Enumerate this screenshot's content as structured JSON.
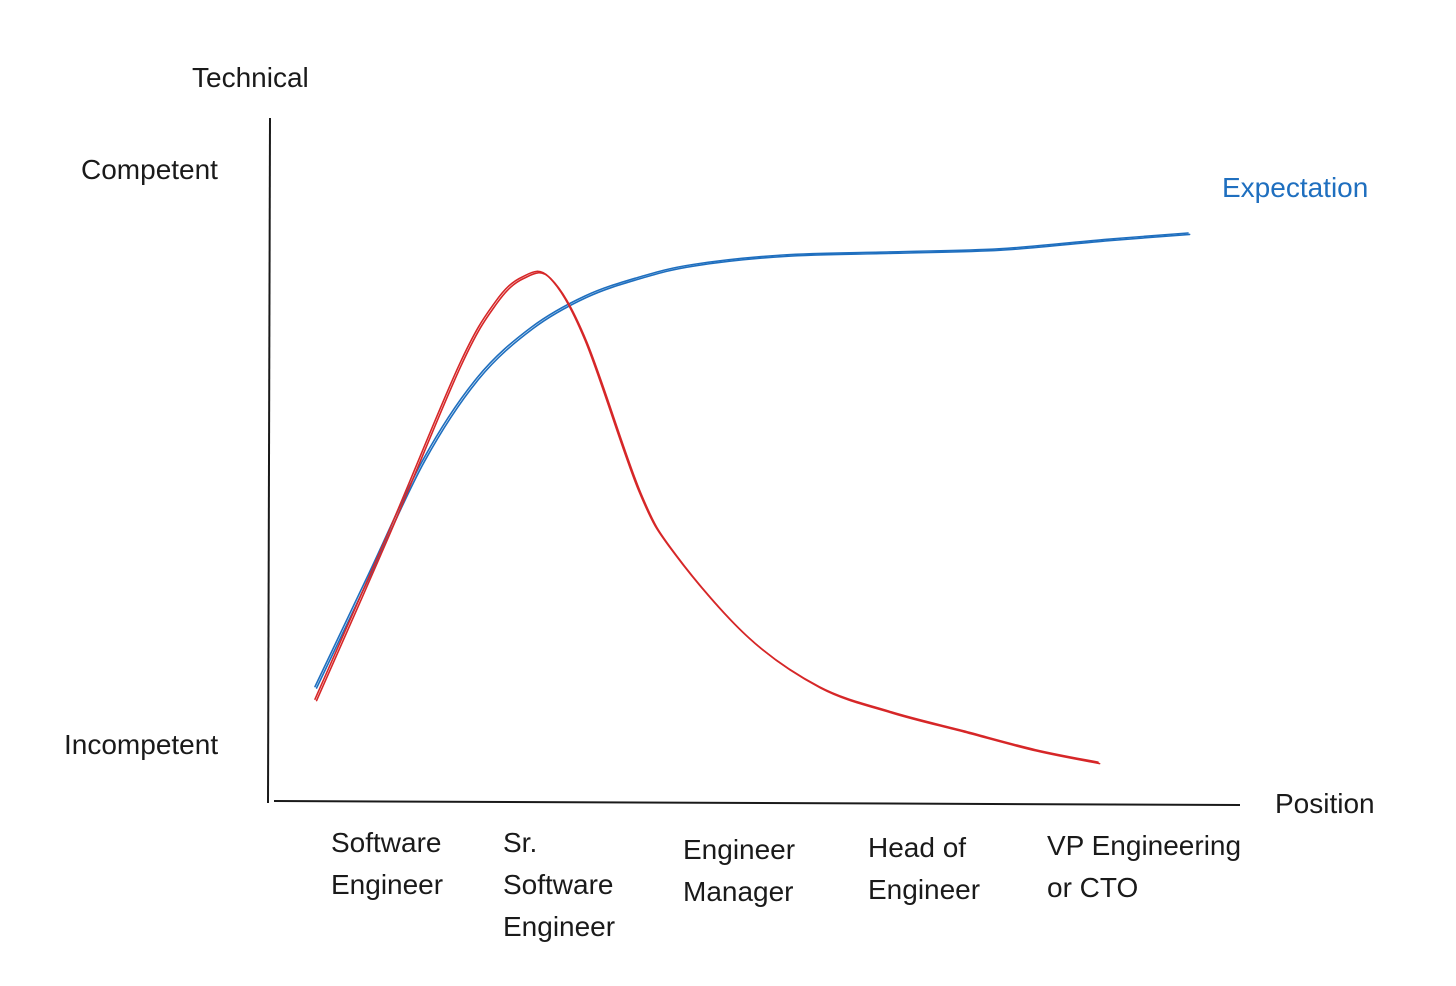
{
  "chart_data": {
    "type": "line",
    "y_axis_title": "Technical",
    "x_axis_title": "Position",
    "y_labels": {
      "top": "Competent",
      "bottom": "Incompetent"
    },
    "categories": [
      [
        "Software",
        "Engineer"
      ],
      [
        "Sr.",
        "Software",
        "Engineer"
      ],
      [
        "Engineer",
        "Manager"
      ],
      [
        "Head of",
        "Engineer"
      ],
      [
        "VP Engineering",
        "or CTO"
      ]
    ],
    "ylim": [
      0,
      100
    ],
    "grid": false,
    "series": [
      {
        "name": "Expectation",
        "color": "#1f6fbf",
        "points": [
          [
            0.0,
            18
          ],
          [
            0.3,
            36
          ],
          [
            0.6,
            54
          ],
          [
            0.9,
            67
          ],
          [
            1.2,
            75
          ],
          [
            1.5,
            80
          ],
          [
            1.8,
            83
          ],
          [
            2.1,
            85
          ],
          [
            2.6,
            86.5
          ],
          [
            3.2,
            87
          ],
          [
            3.8,
            87.5
          ],
          [
            4.4,
            89
          ],
          [
            4.85,
            90
          ]
        ]
      },
      {
        "name": "",
        "color": "#d62728",
        "points": [
          [
            0.0,
            16
          ],
          [
            0.4,
            42
          ],
          [
            0.8,
            69
          ],
          [
            1.0,
            79
          ],
          [
            1.15,
            83
          ],
          [
            1.3,
            83
          ],
          [
            1.5,
            73
          ],
          [
            1.8,
            49
          ],
          [
            2.0,
            39
          ],
          [
            2.4,
            26
          ],
          [
            2.8,
            18
          ],
          [
            3.2,
            14
          ],
          [
            3.6,
            11
          ],
          [
            4.0,
            8
          ],
          [
            4.35,
            6
          ]
        ]
      }
    ]
  }
}
